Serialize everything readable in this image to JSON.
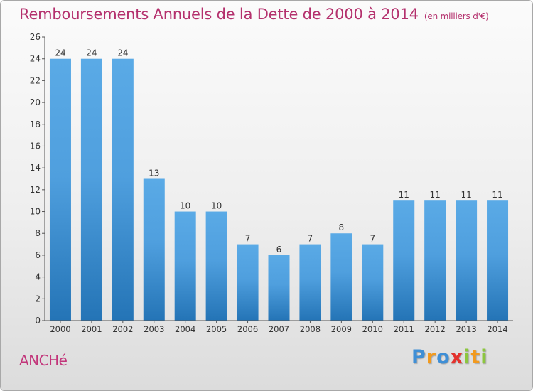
{
  "chart_data": {
    "type": "bar",
    "title": "Remboursements Annuels de la Dette de 2000 à 2014",
    "subtitle": "(en milliers d'€)",
    "categories": [
      "2000",
      "2001",
      "2002",
      "2003",
      "2004",
      "2005",
      "2006",
      "2007",
      "2008",
      "2009",
      "2010",
      "2011",
      "2012",
      "2013",
      "2014"
    ],
    "values": [
      24,
      24,
      24,
      13,
      10,
      10,
      7,
      6,
      7,
      8,
      7,
      11,
      11,
      11,
      11
    ],
    "ylim": [
      0,
      26
    ],
    "yticks": [
      0,
      2,
      4,
      6,
      8,
      10,
      12,
      14,
      16,
      18,
      20,
      22,
      24,
      26
    ],
    "grid": false,
    "bar_color": "#5aaae6",
    "bar_color_dark": "#2474b6"
  },
  "footer": {
    "commune": "ANCHé",
    "logo_letters": [
      {
        "ch": "P",
        "color": "#3f8fd6"
      },
      {
        "ch": "r",
        "color": "#f29a1e"
      },
      {
        "ch": "o",
        "color": "#3f8fd6"
      },
      {
        "ch": "x",
        "color": "#e4322d"
      },
      {
        "ch": "i",
        "color": "#8cc63e"
      },
      {
        "ch": "t",
        "color": "#f29a1e"
      },
      {
        "ch": "i",
        "color": "#8cc63e"
      }
    ]
  }
}
